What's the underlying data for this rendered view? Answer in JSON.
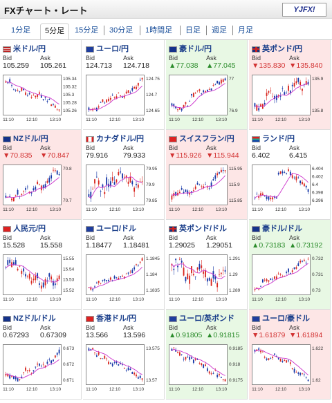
{
  "header": {
    "title": "FXチャート・レート",
    "logo_main": "YJFX!",
    "logo_sub": ""
  },
  "tabs": [
    {
      "label": "1分足",
      "active": false
    },
    {
      "label": "5分足",
      "active": true
    },
    {
      "label": "15分足",
      "active": false
    },
    {
      "label": "30分足",
      "active": false
    },
    {
      "label": "1時間足",
      "active": false
    },
    {
      "label": "日足",
      "active": false
    },
    {
      "label": "週足",
      "active": false
    },
    {
      "label": "月足",
      "active": false
    }
  ],
  "colors": {
    "up_candle": "#d8251e",
    "down_candle": "#1637a7",
    "ma_line": "#cc33cc",
    "rise_text": "#2c8c2c",
    "fall_text": "#d23232"
  },
  "pairs": [
    {
      "name": "米ドル/円",
      "flag": "us",
      "state": "none",
      "bid": "105.259",
      "ask": "105.261",
      "yticks": [
        "105.34",
        "105.32",
        "105.3",
        "105.28",
        "105.26"
      ],
      "xticks": [
        "11:10",
        "12:10",
        "13:10"
      ],
      "trend": "down"
    },
    {
      "name": "ユーロ/円",
      "flag": "eu",
      "state": "none",
      "bid": "124.713",
      "ask": "124.718",
      "yticks": [
        "124.75",
        "124.7",
        "124.65"
      ],
      "xticks": [
        "11:10",
        "12:10",
        "13:10"
      ],
      "trend": "up"
    },
    {
      "name": "豪ドル/円",
      "flag": "au",
      "state": "up",
      "bid": "▲77.038",
      "ask": "▲77.045",
      "yticks": [
        "77",
        "76.9"
      ],
      "xticks": [
        "11:10",
        "12:10",
        "13:10"
      ],
      "trend": "up"
    },
    {
      "name": "英ポンド/円",
      "flag": "gb",
      "state": "down",
      "bid": "▼135.830",
      "ask": "▼135.840",
      "yticks": [
        "135.9",
        "135.8"
      ],
      "xticks": [
        "11:10",
        "12:10",
        "13:10"
      ],
      "trend": "flat"
    },
    {
      "name": "NZドル/円",
      "flag": "nz",
      "state": "down",
      "bid": "▼70.835",
      "ask": "▼70.847",
      "yticks": [
        "70.8",
        "70.7"
      ],
      "xticks": [
        "11:10",
        "12:10",
        "13:10"
      ],
      "trend": "up"
    },
    {
      "name": "カナダドル/円",
      "flag": "ca",
      "state": "none",
      "bid": "79.916",
      "ask": "79.933",
      "yticks": [
        "79.95",
        "79.9",
        "79.85"
      ],
      "xticks": [
        "11:10",
        "12:10",
        "13:10"
      ],
      "trend": "up"
    },
    {
      "name": "スイスフラン/円",
      "flag": "ch",
      "state": "down",
      "bid": "▼115.926",
      "ask": "▼115.944",
      "yticks": [
        "115.95",
        "115.9",
        "115.85"
      ],
      "xticks": [
        "11:10",
        "12:10",
        "13:10"
      ],
      "trend": "up"
    },
    {
      "name": "ランド/円",
      "flag": "za",
      "state": "none",
      "bid": "6.402",
      "ask": "6.415",
      "yticks": [
        "6.404",
        "6.402",
        "6.4",
        "6.398",
        "6.396"
      ],
      "xticks": [
        "11:10",
        "12:10",
        "13:10"
      ],
      "trend": "jump"
    },
    {
      "name": "人民元/円",
      "flag": "cn",
      "state": "none",
      "bid": "15.528",
      "ask": "15.558",
      "yticks": [
        "15.55",
        "15.54",
        "15.53",
        "15.52"
      ],
      "xticks": [
        "11:10",
        "12:10",
        "13:10"
      ],
      "trend": "down"
    },
    {
      "name": "ユーロ/ドル",
      "flag": "eu",
      "state": "none",
      "bid": "1.18477",
      "ask": "1.18481",
      "yticks": [
        "1.1845",
        "1.184",
        "1.1835"
      ],
      "xticks": [
        "11:10",
        "12:10",
        "13:10"
      ],
      "trend": "up"
    },
    {
      "name": "英ポンド/ドル",
      "flag": "gb",
      "state": "none",
      "bid": "1.29025",
      "ask": "1.29051",
      "yticks": [
        "1.291",
        "1.29",
        "1.289"
      ],
      "xticks": [
        "11:10",
        "12:10",
        "13:10"
      ],
      "trend": "flat"
    },
    {
      "name": "豪ドル/ドル",
      "flag": "au",
      "state": "up",
      "bid": "▲0.73183",
      "ask": "▲0.73192",
      "yticks": [
        "0.732",
        "0.731",
        "0.73"
      ],
      "xticks": [
        "11:10",
        "12:10",
        "13:10"
      ],
      "trend": "up"
    },
    {
      "name": "NZドル/ドル",
      "flag": "nz",
      "state": "none",
      "bid": "0.67293",
      "ask": "0.67309",
      "yticks": [
        "0.673",
        "0.672",
        "0.671"
      ],
      "xticks": [
        "11:10",
        "12:10",
        "13:10"
      ],
      "trend": "up"
    },
    {
      "name": "香港ドル/円",
      "flag": "hk",
      "state": "none",
      "bid": "13.566",
      "ask": "13.596",
      "yticks": [
        "13.575",
        "13.57"
      ],
      "xticks": [
        "11:10",
        "12:10",
        "13:10"
      ],
      "trend": "down"
    },
    {
      "name": "ユーロ/英ポンド",
      "flag": "eu",
      "state": "up",
      "bid": "▲0.91805",
      "ask": "▲0.91815",
      "yticks": [
        "0.9185",
        "0.918",
        "0.9175"
      ],
      "xticks": [
        "11:10",
        "12:10",
        "13:10"
      ],
      "trend": "down"
    },
    {
      "name": "ユーロ/豪ドル",
      "flag": "eu",
      "state": "down",
      "bid": "▼1.61879",
      "ask": "▼1.61894",
      "yticks": [
        "1.622",
        "1.62"
      ],
      "xticks": [
        "11:10",
        "12:10",
        "13:10"
      ],
      "trend": "down"
    }
  ],
  "labels": {
    "bid": "Bid",
    "ask": "Ask"
  }
}
